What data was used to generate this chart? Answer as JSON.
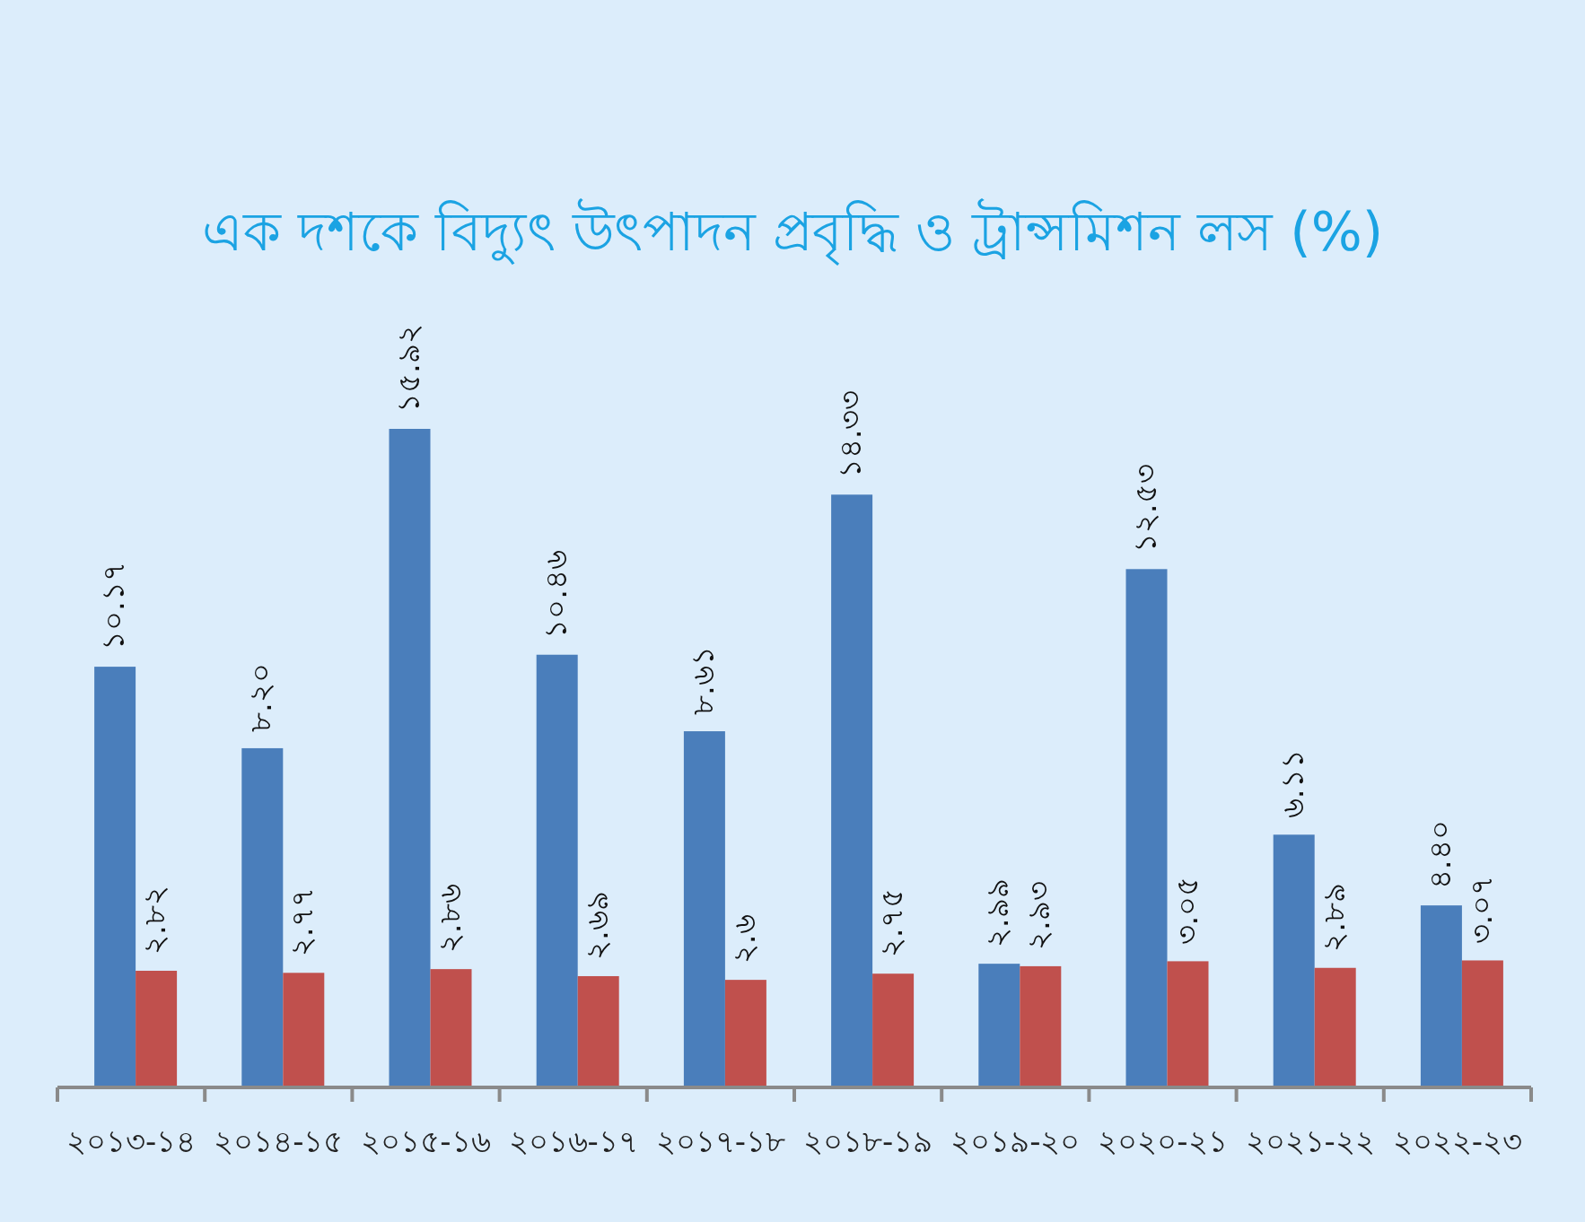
{
  "chart_data": {
    "type": "bar",
    "title": "এক দশকে বিদ্যুৎ উৎপাদন প্রবৃদ্ধি ও ট্রান্সমিশন লস (%)",
    "categories": [
      "২০১৩-১৪",
      "২০১৪-১৫",
      "২০১৫-১৬",
      "২০১৬-১৭",
      "২০১৭-১৮",
      "২০১৮-১৯",
      "২০১৯-২০",
      "২০২০-২১",
      "২০২১-২২",
      "২০২২-২৩"
    ],
    "series": [
      {
        "color": "#4a7ebb",
        "values": [
          10.17,
          8.2,
          15.92,
          10.46,
          8.61,
          14.33,
          2.99,
          12.53,
          6.11,
          4.4
        ],
        "value_labels": [
          "১০.১৭",
          "৮.২০",
          "১৫.৯২",
          "১০.৪৬",
          "৮.৬১",
          "১৪.৩৩",
          "২.৯৯",
          "১২.৫৩",
          "৬.১১",
          "৪.৪০"
        ]
      },
      {
        "color": "#c0504d",
        "values": [
          2.82,
          2.77,
          2.86,
          2.69,
          2.6,
          2.75,
          2.93,
          3.05,
          2.89,
          3.07
        ],
        "value_labels": [
          "২.৮২",
          "২.৭৭",
          "২.৮৬",
          "২.৬৯",
          "২.৬",
          "২.৭৫",
          "২.৯৩",
          "৩.০৫",
          "২.৮৯",
          "৩.০৭"
        ]
      }
    ]
  }
}
